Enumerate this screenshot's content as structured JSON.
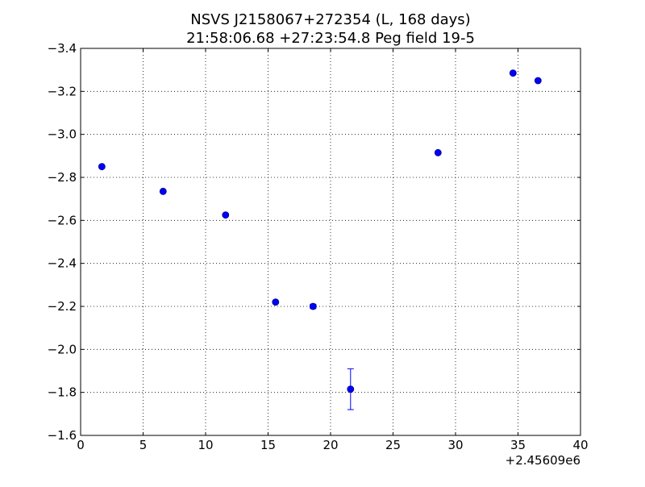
{
  "chart_data": {
    "type": "scatter",
    "title": "NSVS J2158067+272354 (L, 168 days)",
    "subtitle": "21:58:06.68 +27:23:54.8 Peg field 19-5",
    "xlabel": "",
    "ylabel": "",
    "x_offset_label": "+2.45609e6",
    "xlim": [
      0,
      40
    ],
    "ylim": [
      -1.6,
      -3.4
    ],
    "y_inverted": true,
    "grid": true,
    "x_tick_labels": [
      "0",
      "5",
      "10",
      "15",
      "20",
      "25",
      "30",
      "35",
      "40"
    ],
    "y_tick_labels": [
      "−1.6",
      "−1.8",
      "−2.0",
      "−2.2",
      "−2.4",
      "−2.6",
      "−2.8",
      "−3.0",
      "−3.2",
      "−3.4"
    ],
    "series": [
      {
        "color": "#0000ff",
        "marker": "circle",
        "x": [
          1.7,
          6.6,
          11.6,
          15.6,
          18.6,
          21.6,
          28.6,
          34.6,
          36.6
        ],
        "y": [
          -2.85,
          -2.735,
          -2.625,
          -2.22,
          -2.2,
          -1.815,
          -2.915,
          -3.285,
          -3.25
        ],
        "yerr": [
          0.005,
          0.005,
          0.005,
          0.005,
          0.01,
          0.095,
          0.005,
          0.005,
          0.005
        ]
      }
    ]
  }
}
